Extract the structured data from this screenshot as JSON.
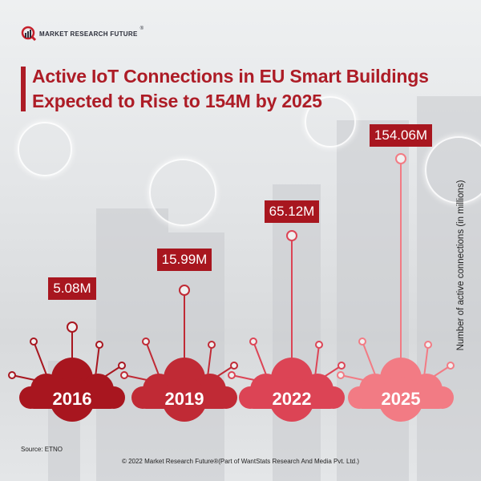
{
  "logo": {
    "name": "MARKET RESEARCH FUTURE",
    "reg": "®"
  },
  "title": {
    "line1": "Active IoT Connections in EU Smart Buildings",
    "line2": "Expected to Rise to 154M by 2025"
  },
  "colors": {
    "accent": "#ad1c26",
    "label_bg": "#a8161f",
    "cloud_2016": "#a8161f",
    "cloud_2019": "#c02a35",
    "cloud_2022": "#dc4455",
    "cloud_2025": "#f27b84"
  },
  "chart_data": {
    "type": "bar",
    "title": "Active IoT Connections in EU Smart Buildings Expected to Rise to 154M by 2025",
    "xlabel": "",
    "ylabel": "Number of active connections (in millions)",
    "categories": [
      "2016",
      "2019",
      "2022",
      "2025"
    ],
    "values": [
      5.08,
      15.99,
      65.12,
      154.06
    ],
    "value_labels": [
      "5.08M",
      "15.99M",
      "65.12M",
      "154.06M"
    ],
    "units": "millions"
  },
  "footer": {
    "source": "Source: ETNO",
    "copyright": "© 2022 Market Research Future®(Part of WantStats Research And Media Pvt. Ltd.)"
  }
}
